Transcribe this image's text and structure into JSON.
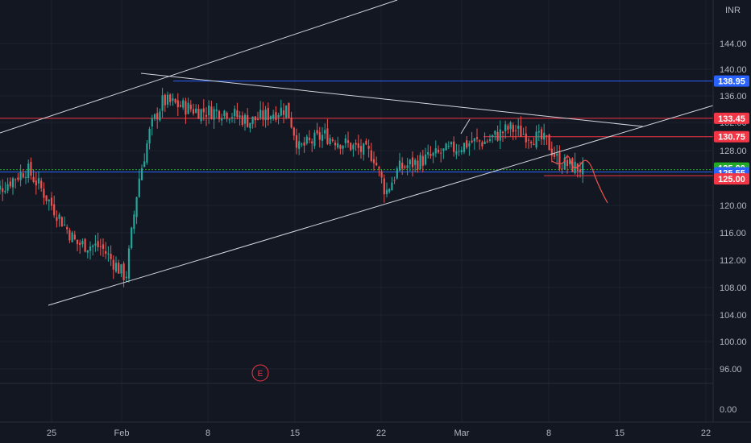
{
  "currency_label": "INR",
  "earnings_marker": "E",
  "price_scale": [
    "144.00",
    "140.00",
    "136.00",
    "132.00",
    "128.00",
    "120.00",
    "116.00",
    "112.00",
    "108.00",
    "104.00",
    "100.00",
    "96.00"
  ],
  "volume_scale": "0.00",
  "time_scale": [
    "25",
    "Feb",
    "8",
    "15",
    "22",
    "Mar",
    "8",
    "15",
    "22"
  ],
  "price_tags": [
    {
      "label": "138.95",
      "bg": "#2962ff",
      "fg": "#ffffff"
    },
    {
      "label": "133.45",
      "bg": "#f23645",
      "fg": "#ffffff"
    },
    {
      "label": "130.75",
      "bg": "#f23645",
      "fg": "#ffffff"
    },
    {
      "label": "125.90",
      "bg": "#22ab27",
      "fg": "#ffffff"
    },
    {
      "label": "125.55",
      "bg": "#2962ff",
      "fg": "#ffffff"
    },
    {
      "label": "125.00",
      "bg": "#f23645",
      "fg": "#ffffff"
    }
  ],
  "colors": {
    "background": "#131722",
    "up": "#26a69a",
    "down": "#ef5350",
    "grid": "#1e222d",
    "trendline": "#d1d4dc",
    "projection": "#ef5350"
  },
  "chart_data": {
    "type": "candlestick",
    "y_unit": "INR",
    "ylim": [
      94,
      147
    ],
    "horizontal_levels": [
      138.95,
      133.45,
      130.75,
      125.9,
      125.55,
      125.0
    ],
    "anchors": [
      {
        "d": "Jan 20",
        "p": 122
      },
      {
        "d": "Jan 23",
        "p": 126
      },
      {
        "d": "Jan 24",
        "p": 123.5
      },
      {
        "d": "Jan 27",
        "p": 115
      },
      {
        "d": "Jan 29",
        "p": 114.5
      },
      {
        "d": "Jan 31",
        "p": 110
      },
      {
        "d": "Feb 1",
        "p": 124
      },
      {
        "d": "Feb 2",
        "p": 132
      },
      {
        "d": "Feb 3",
        "p": 136
      },
      {
        "d": "Feb 6",
        "p": 134.5
      },
      {
        "d": "Feb 8",
        "p": 134.5
      },
      {
        "d": "Feb 10",
        "p": 133
      },
      {
        "d": "Feb 13",
        "p": 135
      },
      {
        "d": "Feb 14",
        "p": 129
      },
      {
        "d": "Feb 16",
        "p": 131
      },
      {
        "d": "Feb 20",
        "p": 128
      },
      {
        "d": "Feb 21",
        "p": 122.5
      },
      {
        "d": "Feb 22",
        "p": 126
      },
      {
        "d": "Feb 28",
        "p": 130
      },
      {
        "d": "Mar 1",
        "p": 130
      },
      {
        "d": "Mar 3",
        "p": 132
      },
      {
        "d": "Mar 6",
        "p": 130
      },
      {
        "d": "Mar 7",
        "p": 127
      },
      {
        "d": "Mar 9",
        "p": 125.9
      }
    ]
  }
}
